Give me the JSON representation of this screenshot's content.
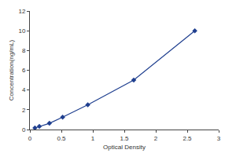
{
  "chart_data": {
    "type": "line",
    "x_label": "Optical Density",
    "y_label": "Concentration(ng/mL)",
    "x": [
      0.08,
      0.15,
      0.31,
      0.52,
      0.92,
      1.65,
      2.62
    ],
    "values": [
      0.16,
      0.31,
      0.63,
      1.25,
      2.5,
      5,
      10
    ],
    "color": "#1f3f8f",
    "marker": "diamond",
    "xlim": [
      0,
      3
    ],
    "xticks": [
      0,
      0.5,
      1,
      1.5,
      2,
      2.5,
      3
    ],
    "ylim": [
      0,
      12
    ],
    "yticks": [
      0,
      2,
      4,
      6,
      8,
      10,
      12
    ],
    "grid": false
  }
}
